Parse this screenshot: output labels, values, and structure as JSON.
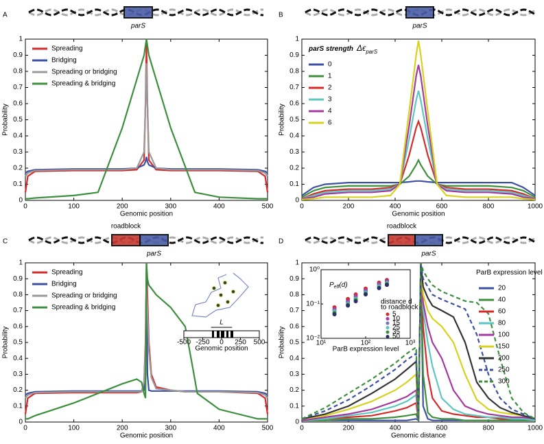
{
  "chart_data": [
    {
      "type": "line",
      "panel_label": "A",
      "diagram_labels": [
        "parS"
      ],
      "xlabel": "Genomic position",
      "ylabel": "Probability",
      "xlim": [
        0,
        500
      ],
      "ylim": [
        0,
        1
      ],
      "xticks": [
        0,
        100,
        200,
        300,
        400,
        500
      ],
      "yticks": [
        0,
        0.1,
        0.2,
        0.3,
        0.4,
        0.5,
        0.6,
        0.7,
        0.8,
        0.9,
        1
      ],
      "legend": "upper left",
      "x": [
        0,
        5,
        20,
        100,
        150,
        200,
        230,
        245,
        248,
        250,
        252,
        255,
        270,
        300,
        350,
        400,
        480,
        495,
        500
      ],
      "series": [
        {
          "name": "Spreading",
          "color": "#d62a2a",
          "values": [
            0.05,
            0.15,
            0.18,
            0.185,
            0.185,
            0.185,
            0.19,
            0.25,
            0.6,
            0.97,
            0.6,
            0.25,
            0.19,
            0.185,
            0.185,
            0.185,
            0.18,
            0.15,
            0.05
          ]
        },
        {
          "name": "Bridging",
          "color": "#3d4fa3",
          "values": [
            0.17,
            0.18,
            0.19,
            0.195,
            0.195,
            0.195,
            0.2,
            0.22,
            0.24,
            0.27,
            0.24,
            0.22,
            0.2,
            0.195,
            0.195,
            0.195,
            0.19,
            0.18,
            0.17
          ]
        },
        {
          "name": "Spreading or bridging",
          "color": "#999999",
          "values": [
            0.15,
            0.17,
            0.185,
            0.19,
            0.19,
            0.19,
            0.2,
            0.3,
            0.6,
            0.85,
            0.6,
            0.3,
            0.2,
            0.19,
            0.19,
            0.19,
            0.185,
            0.17,
            0.15
          ]
        },
        {
          "name": "Spreading & bridging",
          "color": "#3c8f3c",
          "values": [
            0.01,
            0.01,
            0.015,
            0.03,
            0.05,
            0.45,
            0.75,
            0.9,
            0.96,
            1,
            0.96,
            0.9,
            0.75,
            0.45,
            0.05,
            0.02,
            0.01,
            0.01,
            0.01
          ]
        }
      ]
    },
    {
      "type": "line",
      "panel_label": "B",
      "diagram_labels": [
        "parS"
      ],
      "xlabel": "Genomic position",
      "ylabel": "Probability",
      "xlim": [
        0,
        1000
      ],
      "ylim": [
        0,
        1
      ],
      "xticks": [
        0,
        200,
        400,
        600,
        800,
        1000
      ],
      "yticks": [
        0,
        0.1,
        0.2,
        0.3,
        0.4,
        0.5,
        0.6,
        0.7,
        0.8,
        0.9,
        1
      ],
      "legend": "upper left",
      "legend_title": [
        "parS strength",
        "Δϵ",
        "parS"
      ],
      "x": [
        0,
        50,
        100,
        200,
        300,
        380,
        420,
        460,
        490,
        500,
        510,
        540,
        580,
        620,
        700,
        800,
        900,
        950,
        1000
      ],
      "series": [
        {
          "name": "0",
          "color": "#3d4fa3",
          "values": [
            0.03,
            0.08,
            0.1,
            0.11,
            0.11,
            0.11,
            0.11,
            0.115,
            0.12,
            0.12,
            0.12,
            0.115,
            0.11,
            0.11,
            0.11,
            0.11,
            0.11,
            0.08,
            0.03
          ]
        },
        {
          "name": "1",
          "color": "#3c8f3c",
          "values": [
            0.02,
            0.06,
            0.08,
            0.09,
            0.09,
            0.09,
            0.1,
            0.15,
            0.22,
            0.25,
            0.22,
            0.15,
            0.1,
            0.09,
            0.09,
            0.09,
            0.08,
            0.06,
            0.02
          ]
        },
        {
          "name": "2",
          "color": "#d62a2a",
          "values": [
            0.01,
            0.04,
            0.06,
            0.07,
            0.07,
            0.08,
            0.1,
            0.28,
            0.45,
            0.49,
            0.45,
            0.28,
            0.1,
            0.08,
            0.07,
            0.07,
            0.06,
            0.04,
            0.01
          ]
        },
        {
          "name": "3",
          "color": "#5cc6c0",
          "values": [
            0.01,
            0.03,
            0.05,
            0.06,
            0.06,
            0.07,
            0.1,
            0.38,
            0.62,
            0.68,
            0.62,
            0.38,
            0.1,
            0.07,
            0.06,
            0.06,
            0.05,
            0.03,
            0.01
          ]
        },
        {
          "name": "4",
          "color": "#a43a9e",
          "values": [
            0.01,
            0.02,
            0.04,
            0.05,
            0.05,
            0.06,
            0.1,
            0.46,
            0.77,
            0.84,
            0.77,
            0.46,
            0.1,
            0.06,
            0.05,
            0.05,
            0.04,
            0.02,
            0.01
          ]
        },
        {
          "name": "6",
          "color": "#d7d21e",
          "values": [
            0.005,
            0.01,
            0.02,
            0.02,
            0.02,
            0.03,
            0.1,
            0.55,
            0.9,
            0.99,
            0.9,
            0.55,
            0.1,
            0.03,
            0.02,
            0.02,
            0.02,
            0.01,
            0.005
          ]
        }
      ]
    },
    {
      "type": "line",
      "panel_label": "C",
      "diagram_labels": [
        "roadblock",
        "parS"
      ],
      "xlabel": "Genomic position",
      "ylabel": "Probability",
      "xlim": [
        0,
        500
      ],
      "ylim": [
        0,
        1
      ],
      "xticks": [
        0,
        100,
        200,
        300,
        400,
        500
      ],
      "yticks": [
        0,
        0.1,
        0.2,
        0.3,
        0.4,
        0.5,
        0.6,
        0.7,
        0.8,
        0.9,
        1
      ],
      "legend": "upper left",
      "inset": {
        "xlim": [
          -500,
          500
        ],
        "xticks": [
          -500,
          -250,
          0,
          250,
          500
        ],
        "xlabel": "Genomic position",
        "marker": "L"
      },
      "x": [
        0,
        5,
        20,
        100,
        200,
        230,
        240,
        245,
        248,
        250,
        252,
        255,
        260,
        270,
        300,
        330,
        345,
        355,
        400,
        480,
        495,
        500
      ],
      "series": [
        {
          "name": "Spreading",
          "color": "#d62a2a",
          "values": [
            0.05,
            0.15,
            0.18,
            0.185,
            0.185,
            0.185,
            0.19,
            0.25,
            0.5,
            0.97,
            0.8,
            0.5,
            0.3,
            0.22,
            0.2,
            0.19,
            0.19,
            0.19,
            0.19,
            0.18,
            0.15,
            0.05
          ]
        },
        {
          "name": "Bridging",
          "color": "#3d4fa3",
          "values": [
            0.17,
            0.18,
            0.19,
            0.195,
            0.195,
            0.195,
            0.195,
            0.2,
            0.3,
            1,
            0.3,
            0.2,
            0.195,
            0.195,
            0.195,
            0.195,
            0.195,
            0.195,
            0.195,
            0.19,
            0.18,
            0.17
          ]
        },
        {
          "name": "Spreading or bridging",
          "color": "#999999",
          "values": [
            0.15,
            0.17,
            0.185,
            0.19,
            0.19,
            0.19,
            0.19,
            0.25,
            0.45,
            0.85,
            0.7,
            0.45,
            0.28,
            0.21,
            0.2,
            0.19,
            0.19,
            0.19,
            0.19,
            0.185,
            0.17,
            0.15
          ]
        },
        {
          "name": "Spreading & bridging",
          "color": "#3c8f3c",
          "values": [
            0.02,
            0.02,
            0.04,
            0.12,
            0.24,
            0.27,
            0.25,
            0.18,
            0.15,
            1,
            0.9,
            0.86,
            0.84,
            0.8,
            0.72,
            0.6,
            0.35,
            0.18,
            0.08,
            0.02,
            0.02,
            0.02
          ]
        }
      ]
    },
    {
      "type": "line",
      "panel_label": "D",
      "diagram_labels": [
        "roadblock",
        "parS"
      ],
      "xlabel": "Genomic distance",
      "ylabel": "Probability",
      "xlim": [
        0,
        1000
      ],
      "ylim": [
        0,
        1
      ],
      "xticks": [
        0,
        200,
        400,
        600,
        800,
        1000
      ],
      "yticks": [
        0,
        0.1,
        0.2,
        0.3,
        0.4,
        0.5,
        0.6,
        0.7,
        0.8,
        0.9,
        1
      ],
      "legend": "upper right",
      "legend_title": [
        "ParB expression level"
      ],
      "x": [
        0,
        100,
        200,
        300,
        400,
        450,
        490,
        500,
        510,
        520,
        540,
        560,
        600,
        650,
        700,
        750,
        800,
        850,
        900,
        950,
        1000
      ],
      "series": [
        {
          "name": "20",
          "color": "#3d4fa3",
          "dashed": false,
          "values": [
            0.01,
            0.01,
            0.01,
            0.01,
            0.01,
            0.01,
            0.02,
            0.01,
            1,
            0.1,
            0.02,
            0.01,
            0.01,
            0.01,
            0.01,
            0.01,
            0.01,
            0.01,
            0.01,
            0.01,
            0.01
          ]
        },
        {
          "name": "40",
          "color": "#3c8f3c",
          "dashed": false,
          "values": [
            0.01,
            0.01,
            0.02,
            0.02,
            0.03,
            0.04,
            0.05,
            0.01,
            1,
            0.3,
            0.06,
            0.03,
            0.02,
            0.02,
            0.01,
            0.01,
            0.01,
            0.01,
            0.01,
            0.01,
            0.01
          ]
        },
        {
          "name": "60",
          "color": "#d62a2a",
          "dashed": false,
          "values": [
            0.01,
            0.02,
            0.03,
            0.04,
            0.07,
            0.09,
            0.12,
            0.01,
            1,
            0.6,
            0.3,
            0.15,
            0.07,
            0.05,
            0.04,
            0.03,
            0.03,
            0.02,
            0.02,
            0.02,
            0.01
          ]
        },
        {
          "name": "80",
          "color": "#5cc6c0",
          "dashed": false,
          "values": [
            0.01,
            0.02,
            0.04,
            0.06,
            0.1,
            0.13,
            0.17,
            0.01,
            1,
            0.7,
            0.5,
            0.35,
            0.15,
            0.08,
            0.05,
            0.04,
            0.03,
            0.03,
            0.02,
            0.02,
            0.01
          ]
        },
        {
          "name": "100",
          "color": "#a43a9e",
          "dashed": false,
          "values": [
            0.01,
            0.03,
            0.05,
            0.08,
            0.13,
            0.16,
            0.2,
            0.01,
            1,
            0.75,
            0.6,
            0.5,
            0.4,
            0.2,
            0.1,
            0.07,
            0.05,
            0.04,
            0.03,
            0.03,
            0.02
          ]
        },
        {
          "name": "150",
          "color": "#d7d21e",
          "dashed": false,
          "values": [
            0.02,
            0.04,
            0.08,
            0.13,
            0.2,
            0.25,
            0.3,
            0.01,
            1,
            0.8,
            0.7,
            0.65,
            0.6,
            0.5,
            0.3,
            0.14,
            0.08,
            0.06,
            0.05,
            0.04,
            0.02
          ]
        },
        {
          "name": "200",
          "color": "#333333",
          "dashed": false,
          "values": [
            0.02,
            0.05,
            0.1,
            0.18,
            0.27,
            0.33,
            0.38,
            0.01,
            1,
            0.85,
            0.78,
            0.73,
            0.7,
            0.66,
            0.5,
            0.25,
            0.15,
            0.09,
            0.06,
            0.04,
            0.02
          ]
        },
        {
          "name": "250",
          "color": "#3d4fa3",
          "dashed": true,
          "values": [
            0.02,
            0.07,
            0.14,
            0.23,
            0.33,
            0.39,
            0.43,
            0.01,
            1,
            0.9,
            0.85,
            0.8,
            0.77,
            0.74,
            0.71,
            0.55,
            0.3,
            0.15,
            0.08,
            0.05,
            0.02
          ]
        },
        {
          "name": "300",
          "color": "#3c8f3c",
          "dashed": true,
          "values": [
            0.02,
            0.09,
            0.18,
            0.27,
            0.37,
            0.43,
            0.47,
            0.01,
            1,
            0.95,
            0.9,
            0.86,
            0.82,
            0.79,
            0.76,
            0.75,
            0.68,
            0.4,
            0.15,
            0.06,
            0.02
          ]
        }
      ],
      "inset": {
        "type": "scatter",
        "xlog": true,
        "ylog": true,
        "xlim": [
          10,
          1000
        ],
        "ylim": [
          0.01,
          1
        ],
        "xticks": [
          {
            "value": 10,
            "label": "10¹"
          },
          {
            "value": 100,
            "label": "10²"
          },
          {
            "value": 1000,
            "label": "10³"
          }
        ],
        "yticks": [
          {
            "value": 0.01,
            "label": "10⁻²"
          },
          {
            "value": 0.1,
            "label": "10⁻¹"
          },
          {
            "value": 1,
            "label": "10⁰"
          }
        ],
        "xlabel": "ParB expression level",
        "ylabel": [
          "P",
          "eff",
          "(d)"
        ],
        "legend_title": [
          "distance d",
          "to roadblock"
        ],
        "x": [
          20,
          40,
          60,
          100,
          200,
          300
        ],
        "series": [
          {
            "name": "5",
            "color": "#d62a2a",
            "values": [
              0.08,
              0.14,
              0.19,
              0.28,
              0.42,
              0.5
            ]
          },
          {
            "name": "10",
            "color": "#a43a9e",
            "values": [
              0.07,
              0.12,
              0.17,
              0.25,
              0.38,
              0.46
            ]
          },
          {
            "name": "15",
            "color": "#7a6fc0",
            "values": [
              0.065,
              0.11,
              0.15,
              0.23,
              0.35,
              0.43
            ]
          },
          {
            "name": "25",
            "color": "#5cc6c0",
            "values": [
              0.06,
              0.1,
              0.14,
              0.21,
              0.32,
              0.4
            ]
          },
          {
            "name": "35",
            "color": "#3c8f3c",
            "values": [
              0.055,
              0.095,
              0.13,
              0.2,
              0.3,
              0.38
            ]
          },
          {
            "name": "50",
            "color": "#2a2f6a",
            "values": [
              0.05,
              0.09,
              0.12,
              0.19,
              0.29,
              0.36
            ]
          }
        ]
      }
    }
  ]
}
